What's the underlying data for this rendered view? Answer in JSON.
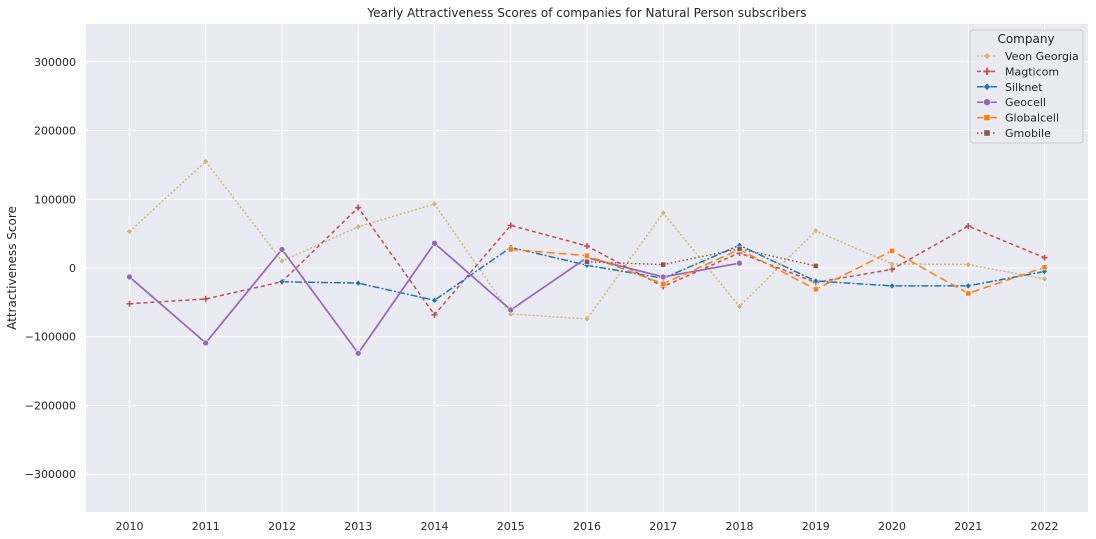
{
  "chart_data": {
    "type": "line",
    "title": "Yearly Attractiveness Scores of companies for Natural Person subscribers",
    "xlabel": "",
    "ylabel": "Attractiveness Score",
    "x": [
      2010,
      2011,
      2012,
      2013,
      2014,
      2015,
      2016,
      2017,
      2018,
      2019,
      2020,
      2021,
      2022
    ],
    "ylim": [
      -355000,
      355000
    ],
    "yticks": [
      -300000,
      -200000,
      -100000,
      0,
      100000,
      200000,
      300000
    ],
    "ytick_labels": [
      "−300000",
      "−200000",
      "−100000",
      "0",
      "100000",
      "200000",
      "300000"
    ],
    "grid": true,
    "background": "#eaeaf2",
    "legend": {
      "title": "Company",
      "placement": "top-right"
    },
    "series": [
      {
        "name": "Veon Georgia",
        "color": "#ccb974",
        "dash": "2,2",
        "marker": "diamond",
        "x": [
          2010,
          2011,
          2012,
          2013,
          2014,
          2015,
          2016,
          2017,
          2018,
          2019,
          2020,
          2021,
          2022
        ],
        "values": [
          53000,
          155000,
          10000,
          60000,
          93000,
          -67000,
          -74000,
          80000,
          -56000,
          54000,
          6000,
          5000,
          -16000
        ]
      },
      {
        "name": "Magticom",
        "color": "#c44e52",
        "dash": "4,3",
        "marker": "plus",
        "x": [
          2010,
          2011,
          2012,
          2013,
          2014,
          2015,
          2016,
          2017,
          2018,
          2019,
          2020,
          2021,
          2022
        ],
        "values": [
          -52000,
          -45000,
          -20000,
          88000,
          -68000,
          62000,
          32000,
          -27000,
          22000,
          -21000,
          -2000,
          61000,
          15000
        ]
      },
      {
        "name": "Silknet",
        "color": "#1f77b4",
        "dash": "7,2,2,2",
        "marker": "diamond",
        "x": [
          2012,
          2013,
          2014,
          2015,
          2016,
          2017,
          2018,
          2019,
          2020,
          2021,
          2022
        ],
        "values": [
          -20000,
          -22000,
          -47000,
          30000,
          4000,
          -15000,
          33000,
          -19000,
          -26000,
          -26000,
          -5000
        ]
      },
      {
        "name": "Geocell",
        "color": "#9467bd",
        "dash": "",
        "marker": "circle",
        "x": [
          2010,
          2011,
          2012,
          2013,
          2014,
          2015,
          2016,
          2017,
          2018
        ],
        "values": [
          -13000,
          -109000,
          27000,
          -124000,
          36000,
          -61000,
          15000,
          -13000,
          7000
        ]
      },
      {
        "name": "Globalcell",
        "color": "#ff7f0e",
        "dash": "8,4",
        "marker": "square",
        "x": [
          2015,
          2016,
          2017,
          2018,
          2019,
          2020,
          2021,
          2022
        ],
        "values": [
          27000,
          18000,
          -23000,
          27000,
          -31000,
          25000,
          -37000,
          1000
        ]
      },
      {
        "name": "Gmobile",
        "color": "#8c564b",
        "dash": "1.5,2.5",
        "marker": "square",
        "x": [
          2016,
          2017,
          2018,
          2019
        ],
        "values": [
          9000,
          5000,
          28000,
          3000
        ]
      }
    ]
  }
}
